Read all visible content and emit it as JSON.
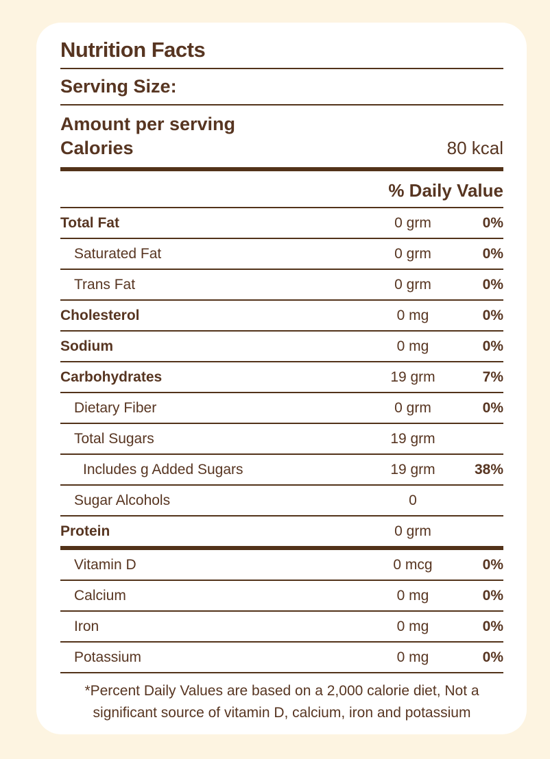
{
  "colors": {
    "page_background": "#FDF4E1",
    "card_background": "#FFFFFF",
    "text_brown": "#573521",
    "rule_brown": "#523219"
  },
  "label": {
    "title": "Nutrition Facts",
    "serving_size_label": "Serving Size:",
    "amount_per_serving_label": "Amount per serving",
    "calories_label": "Calories",
    "calories_value": "80 kcal",
    "daily_value_header": "% Daily Value",
    "rows": [
      {
        "label": "Total Fat",
        "amount": "0 grm",
        "percent": "0%",
        "emphasis": "bold",
        "indent": 0,
        "thick_rule_below": false
      },
      {
        "label": "Saturated Fat",
        "amount": "0 grm",
        "percent": "0%",
        "emphasis": "regular",
        "indent": 1,
        "thick_rule_below": false
      },
      {
        "label": "Trans Fat",
        "amount": "0 grm",
        "percent": "0%",
        "emphasis": "regular",
        "indent": 1,
        "thick_rule_below": false
      },
      {
        "label": "Cholesterol",
        "amount": "0 mg",
        "percent": "0%",
        "emphasis": "bold",
        "indent": 0,
        "thick_rule_below": false
      },
      {
        "label": "Sodium",
        "amount": "0 mg",
        "percent": "0%",
        "emphasis": "bold",
        "indent": 0,
        "thick_rule_below": false
      },
      {
        "label": "Carbohydrates",
        "amount": "19 grm",
        "percent": "7%",
        "emphasis": "bold",
        "indent": 0,
        "thick_rule_below": false
      },
      {
        "label": "Dietary Fiber",
        "amount": "0 grm",
        "percent": "0%",
        "emphasis": "regular",
        "indent": 1,
        "thick_rule_below": false
      },
      {
        "label": "Total Sugars",
        "amount": "19 grm",
        "percent": "",
        "emphasis": "regular",
        "indent": 1,
        "thick_rule_below": false
      },
      {
        "label": "Includes g Added Sugars",
        "amount": "19 grm",
        "percent": "38%",
        "emphasis": "regular",
        "indent": 2,
        "thick_rule_below": false
      },
      {
        "label": "Sugar Alcohols",
        "amount": "0",
        "percent": "",
        "emphasis": "regular",
        "indent": 1,
        "thick_rule_below": false
      },
      {
        "label": "Protein",
        "amount": "0 grm",
        "percent": "",
        "emphasis": "bold",
        "indent": 0,
        "thick_rule_below": true
      },
      {
        "label": "Vitamin D",
        "amount": "0 mcg",
        "percent": "0%",
        "emphasis": "regular",
        "indent": 1,
        "thick_rule_below": false
      },
      {
        "label": "Calcium",
        "amount": "0 mg",
        "percent": "0%",
        "emphasis": "regular",
        "indent": 1,
        "thick_rule_below": false
      },
      {
        "label": "Iron",
        "amount": "0 mg",
        "percent": "0%",
        "emphasis": "regular",
        "indent": 1,
        "thick_rule_below": false
      },
      {
        "label": "Potassium",
        "amount": "0 mg",
        "percent": "0%",
        "emphasis": "regular",
        "indent": 1,
        "thick_rule_below": false
      }
    ],
    "footnote": "*Percent Daily Values are based on a 2,000 calorie diet, Not a significant source of vitamin D, calcium, iron and potassium"
  }
}
